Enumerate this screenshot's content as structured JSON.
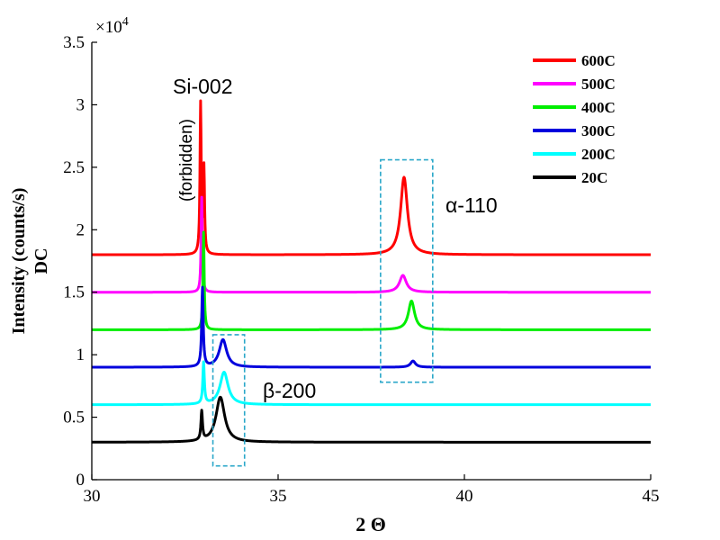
{
  "chart_data": {
    "type": "line",
    "xlabel": "2 Θ",
    "ylabel_line1": "Intensity (counts/s)",
    "ylabel_line2": "DC",
    "xlim": [
      30,
      45
    ],
    "ylim": [
      0,
      35000
    ],
    "x_ticks": [
      30,
      35,
      40,
      45
    ],
    "x_tick_labels": [
      "30",
      "35",
      "40",
      "45"
    ],
    "y_ticks": [
      0,
      5000,
      10000,
      15000,
      20000,
      25000,
      30000,
      35000
    ],
    "y_tick_labels": [
      "0",
      "0.5",
      "1",
      "1.5",
      "2",
      "2.5",
      "3",
      "3.5"
    ],
    "y_exponent_base": "×10",
    "y_exponent_power": "4",
    "grid": false,
    "legend_position": "top-right",
    "annotations": {
      "si": "Si-002",
      "forbidden": "(forbidden)",
      "alpha": "α-110",
      "beta": "β-200"
    },
    "boxes": [
      {
        "x": [
          37.75,
          39.15
        ],
        "y": [
          7800,
          25600
        ]
      },
      {
        "x": [
          33.25,
          34.1
        ],
        "y": [
          1100,
          11600
        ]
      }
    ],
    "series": [
      {
        "name": "600C",
        "color": "#ff0000",
        "baseline": 18000,
        "peaks": [
          {
            "center": 32.92,
            "height": 12000,
            "width": 0.02
          },
          {
            "center": 33.01,
            "height": 6800,
            "width": 0.02
          },
          {
            "center": 38.38,
            "height": 6200,
            "width": 0.11
          }
        ]
      },
      {
        "name": "500C",
        "color": "#ff00ff",
        "baseline": 15000,
        "peaks": [
          {
            "center": 32.95,
            "height": 7600,
            "width": 0.02
          },
          {
            "center": 38.35,
            "height": 1350,
            "width": 0.11
          }
        ]
      },
      {
        "name": "400C",
        "color": "#00ee00",
        "baseline": 12000,
        "peaks": [
          {
            "center": 33.0,
            "height": 7800,
            "width": 0.02
          },
          {
            "center": 38.58,
            "height": 2300,
            "width": 0.1
          }
        ]
      },
      {
        "name": "300C",
        "color": "#0000dd",
        "baseline": 9000,
        "peaks": [
          {
            "center": 32.97,
            "height": 6300,
            "width": 0.025
          },
          {
            "center": 33.52,
            "height": 2200,
            "width": 0.12
          },
          {
            "center": 38.62,
            "height": 500,
            "width": 0.08
          }
        ]
      },
      {
        "name": "200C",
        "color": "#00ffff",
        "baseline": 6000,
        "peaks": [
          {
            "center": 33.0,
            "height": 3300,
            "width": 0.025
          },
          {
            "center": 33.55,
            "height": 2600,
            "width": 0.13
          }
        ]
      },
      {
        "name": "20C",
        "color": "#000000",
        "baseline": 3000,
        "peaks": [
          {
            "center": 32.95,
            "height": 2300,
            "width": 0.025
          },
          {
            "center": 33.45,
            "height": 3600,
            "width": 0.14
          }
        ]
      }
    ]
  }
}
